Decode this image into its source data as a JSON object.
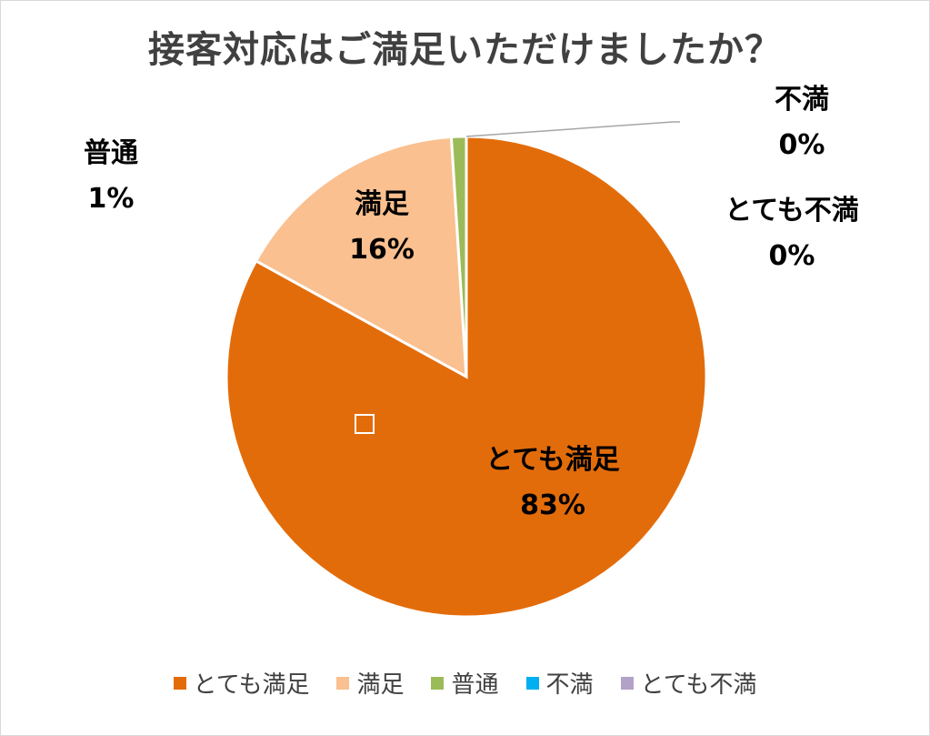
{
  "chart_data": {
    "type": "pie",
    "title": "接客対応はご満足いただけましたか？",
    "categories": [
      "とても満足",
      "満足",
      "普通",
      "不満",
      "とても不満"
    ],
    "values": [
      83,
      16,
      1,
      0,
      0
    ],
    "value_labels": [
      "83%",
      "16%",
      "1%",
      "0%",
      "0%"
    ],
    "colors": [
      "#e36c0a",
      "#fac090",
      "#9bbb59",
      "#00b0f0",
      "#b3a2c7"
    ],
    "legend_position": "bottom"
  }
}
